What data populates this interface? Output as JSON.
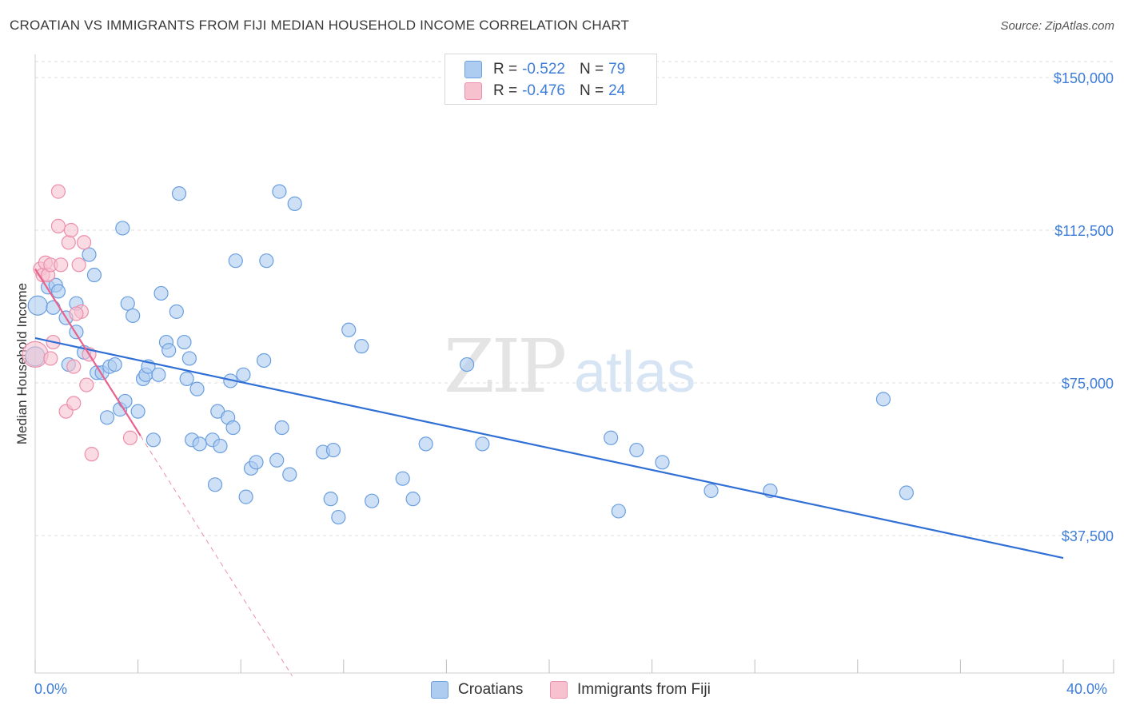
{
  "title": "CROATIAN VS IMMIGRANTS FROM FIJI MEDIAN HOUSEHOLD INCOME CORRELATION CHART",
  "source": "Source: ZipAtlas.com",
  "watermark": {
    "zip": "ZIP",
    "atlas": "atlas"
  },
  "legend": {
    "croatians": {
      "r_label": "R =",
      "r_value": "-0.522",
      "n_label": "N =",
      "n_value": "79"
    },
    "fiji": {
      "r_label": "R =",
      "r_value": "-0.476",
      "n_label": "N =",
      "n_value": "24"
    }
  },
  "bottom_legend": {
    "croatians": "Croatians",
    "fiji": "Immigrants from Fiji"
  },
  "x_axis": {
    "min_label": "0.0%",
    "max_label": "40.0%"
  },
  "colors": {
    "blue_fill": "#aecbf0",
    "blue_stroke": "#6a9fe0",
    "blue_line": "#2f6fd6",
    "pink_fill": "#f7c1d0",
    "pink_stroke": "#ec8fab",
    "pink_line": "#e8628d",
    "grid": "#dcdcdc",
    "axis_text": "#3d7dd8"
  },
  "chart_data": {
    "type": "scatter",
    "xlabel": "",
    "ylabel": "Median Household Income",
    "xlim": [
      0,
      40
    ],
    "ylim": [
      0,
      152000
    ],
    "y_ticks": [
      {
        "value": 37500,
        "label": "$37,500"
      },
      {
        "value": 75000,
        "label": "$75,000"
      },
      {
        "value": 112500,
        "label": "$112,500"
      },
      {
        "value": 150000,
        "label": "$150,000"
      }
    ],
    "x_tick_values": [
      0,
      4,
      8,
      12,
      16,
      20,
      24,
      28,
      32,
      36,
      40
    ],
    "series": [
      {
        "name": "Croatians",
        "trend": {
          "x0": 0,
          "y0": 86000,
          "x1": 40,
          "y1": 32000
        },
        "points": [
          [
            0.1,
            94000
          ],
          [
            0.5,
            98500
          ],
          [
            0.7,
            93500
          ],
          [
            0.8,
            99000
          ],
          [
            0.9,
            97500
          ],
          [
            1.2,
            91000
          ],
          [
            1.6,
            94500
          ],
          [
            1.3,
            79500
          ],
          [
            1.6,
            87500
          ],
          [
            1.9,
            82500
          ],
          [
            2.1,
            106500
          ],
          [
            2.3,
            101500
          ],
          [
            2.4,
            77500
          ],
          [
            2.6,
            77500
          ],
          [
            2.8,
            66500
          ],
          [
            2.9,
            79000
          ],
          [
            3.1,
            79500
          ],
          [
            3.3,
            68500
          ],
          [
            3.4,
            113000
          ],
          [
            3.5,
            70500
          ],
          [
            3.6,
            94500
          ],
          [
            3.8,
            91500
          ],
          [
            4.0,
            68000
          ],
          [
            4.2,
            76000
          ],
          [
            4.3,
            77000
          ],
          [
            4.4,
            79000
          ],
          [
            4.6,
            61000
          ],
          [
            4.8,
            77000
          ],
          [
            4.9,
            97000
          ],
          [
            5.1,
            85000
          ],
          [
            5.2,
            83000
          ],
          [
            5.5,
            92500
          ],
          [
            5.6,
            121500
          ],
          [
            5.8,
            85000
          ],
          [
            5.9,
            76000
          ],
          [
            6.0,
            81000
          ],
          [
            6.1,
            61000
          ],
          [
            6.3,
            73500
          ],
          [
            6.4,
            60000
          ],
          [
            6.9,
            61000
          ],
          [
            7.0,
            50000
          ],
          [
            7.1,
            68000
          ],
          [
            7.2,
            59500
          ],
          [
            7.5,
            66500
          ],
          [
            7.6,
            75500
          ],
          [
            7.7,
            64000
          ],
          [
            7.8,
            105000
          ],
          [
            8.1,
            77000
          ],
          [
            8.2,
            47000
          ],
          [
            8.4,
            54000
          ],
          [
            8.6,
            55500
          ],
          [
            8.9,
            80500
          ],
          [
            9.0,
            105000
          ],
          [
            9.4,
            56000
          ],
          [
            9.5,
            122000
          ],
          [
            9.6,
            64000
          ],
          [
            9.9,
            52500
          ],
          [
            10.1,
            119000
          ],
          [
            11.2,
            58000
          ],
          [
            11.6,
            58500
          ],
          [
            11.5,
            46500
          ],
          [
            11.8,
            42000
          ],
          [
            12.2,
            88000
          ],
          [
            12.7,
            84000
          ],
          [
            13.1,
            46000
          ],
          [
            14.3,
            51500
          ],
          [
            14.7,
            46500
          ],
          [
            15.2,
            60000
          ],
          [
            16.8,
            79500
          ],
          [
            17.4,
            60000
          ],
          [
            22.4,
            61500
          ],
          [
            22.7,
            43500
          ],
          [
            23.4,
            58500
          ],
          [
            24.4,
            55500
          ],
          [
            26.3,
            48500
          ],
          [
            28.6,
            48500
          ],
          [
            33.0,
            71000
          ],
          [
            33.9,
            48000
          ],
          [
            0.0,
            81500
          ]
        ]
      },
      {
        "name": "Immigrants from Fiji",
        "trend": {
          "x0": 0,
          "y0": 103000,
          "x1": 4.1,
          "y1": 62000
        },
        "dashed_extension": {
          "x0": 4.1,
          "y0": 62000,
          "x1": 10.0,
          "y1": 3000
        },
        "points": [
          [
            0.0,
            82000
          ],
          [
            0.2,
            103000
          ],
          [
            0.3,
            101500
          ],
          [
            0.4,
            104500
          ],
          [
            0.5,
            101500
          ],
          [
            0.6,
            81000
          ],
          [
            0.6,
            104000
          ],
          [
            0.7,
            85000
          ],
          [
            0.9,
            122000
          ],
          [
            0.9,
            113500
          ],
          [
            1.0,
            104000
          ],
          [
            1.2,
            68000
          ],
          [
            1.3,
            109500
          ],
          [
            1.4,
            112500
          ],
          [
            1.5,
            70000
          ],
          [
            1.5,
            79000
          ],
          [
            1.7,
            104000
          ],
          [
            1.8,
            92500
          ],
          [
            1.9,
            109500
          ],
          [
            2.0,
            74500
          ],
          [
            2.1,
            82000
          ],
          [
            2.2,
            57500
          ],
          [
            3.7,
            61500
          ],
          [
            1.6,
            92000
          ]
        ]
      }
    ]
  }
}
